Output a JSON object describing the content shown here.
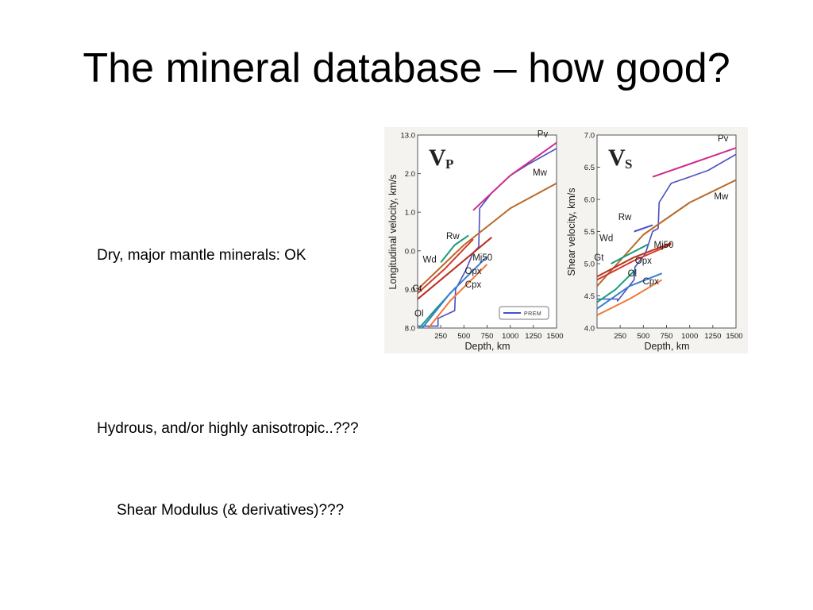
{
  "slide": {
    "title": "The mineral database – how good?",
    "bullets": [
      "Dry, major mantle minerals: OK",
      "Hydrous, and/or highly anisotropic..???",
      "Shear Modulus (& derivatives)???"
    ]
  },
  "colors": {
    "PREM": "#4a4fc4",
    "Pv": "#cc2e8c",
    "Mw": "#b86a28",
    "Gt": "#d33a2a",
    "Mj": "#b8301e",
    "Wd": "#1a9b7c",
    "Ol": "#16a07a",
    "Opx": "#3a7fd0",
    "Cpx": "#f07a3a"
  },
  "chart_data": [
    {
      "type": "line",
      "panel": "Vp",
      "panel_symbol": "V",
      "panel_subscript": "P",
      "xlabel": "Depth, km",
      "ylabel": "Longitudinal velocity, km/s",
      "xlim": [
        0,
        1500
      ],
      "x_ticks": [
        250,
        500,
        750,
        1000,
        1250,
        1500
      ],
      "y_ticks": [
        {
          "value": 0,
          "label": "8.0"
        },
        {
          "value": 1,
          "label": "9.0"
        },
        {
          "value": 2,
          "label": "0.0"
        },
        {
          "value": 3,
          "label": "1.0"
        },
        {
          "value": 4,
          "label": "2.0"
        },
        {
          "value": 5,
          "label": "13.0"
        }
      ],
      "ylim": [
        0,
        5
      ],
      "legend": {
        "label": "PREM",
        "placement": "bottom-right"
      },
      "series": [
        {
          "name": "PREM",
          "x": [
            0,
            220,
            220,
            400,
            410,
            520,
            600,
            660,
            670,
            800,
            1000,
            1200,
            1500
          ],
          "y": [
            0.05,
            0.05,
            0.25,
            0.45,
            1.0,
            1.5,
            1.95,
            2.1,
            3.1,
            3.5,
            3.95,
            4.25,
            4.65
          ]
        },
        {
          "name": "Pv",
          "x": [
            600,
            1000,
            1500
          ],
          "y": [
            3.05,
            3.95,
            4.8
          ]
        },
        {
          "name": "Mw",
          "x": [
            0,
            500,
            1000,
            1500
          ],
          "y": [
            1.0,
            2.15,
            3.1,
            3.75
          ]
        },
        {
          "name": "Gt",
          "x": [
            0,
            300,
            600
          ],
          "y": [
            0.9,
            1.55,
            2.3
          ]
        },
        {
          "name": "Mj",
          "x": [
            0,
            400,
            800
          ],
          "y": [
            0.75,
            1.55,
            2.35
          ]
        },
        {
          "name": "Wd",
          "x": [
            250,
            400,
            550
          ],
          "y": [
            1.7,
            2.15,
            2.4
          ]
        },
        {
          "name": "Ol",
          "x": [
            0,
            200,
            410
          ],
          "y": [
            -0.05,
            0.5,
            1.05
          ]
        },
        {
          "name": "Opx",
          "x": [
            0,
            350,
            750
          ],
          "y": [
            -0.15,
            0.9,
            1.85
          ]
        },
        {
          "name": "Cpx",
          "x": [
            0,
            350,
            750
          ],
          "y": [
            -0.35,
            0.7,
            1.65
          ]
        }
      ],
      "labels": [
        "Pv",
        "Mw",
        "Rw",
        "Wd",
        "Mj50",
        "Gt",
        "Opx",
        "Cpx",
        "Ol"
      ]
    },
    {
      "type": "line",
      "panel": "Vs",
      "panel_symbol": "V",
      "panel_subscript": "S",
      "xlabel": "Depth, km",
      "ylabel": "Shear velocity, km/s",
      "xlim": [
        0,
        1500
      ],
      "ylim": [
        4.0,
        7.0
      ],
      "x_ticks": [
        250,
        500,
        750,
        1000,
        1250,
        1500
      ],
      "y_ticks": [
        {
          "value": 4.0,
          "label": "4.0"
        },
        {
          "value": 4.5,
          "label": "4.5"
        },
        {
          "value": 5.0,
          "label": "5.0"
        },
        {
          "value": 5.5,
          "label": "5.5"
        },
        {
          "value": 6.0,
          "label": "6.0"
        },
        {
          "value": 6.5,
          "label": "6.5"
        },
        {
          "value": 7.0,
          "label": "7.0"
        }
      ],
      "series": [
        {
          "name": "PREM",
          "x": [
            0,
            220,
            220,
            400,
            410,
            520,
            600,
            660,
            670,
            800,
            1000,
            1200,
            1500
          ],
          "y": [
            4.45,
            4.45,
            4.42,
            4.75,
            4.95,
            5.15,
            5.5,
            5.55,
            5.95,
            6.25,
            6.35,
            6.45,
            6.7
          ]
        },
        {
          "name": "Pv",
          "x": [
            600,
            1000,
            1500
          ],
          "y": [
            6.35,
            6.55,
            6.8
          ]
        },
        {
          "name": "Mw",
          "x": [
            0,
            500,
            1000,
            1500
          ],
          "y": [
            4.65,
            5.45,
            5.95,
            6.3
          ]
        },
        {
          "name": "Gt",
          "x": [
            0,
            400,
            800
          ],
          "y": [
            4.75,
            5.05,
            5.3
          ]
        },
        {
          "name": "Mj",
          "x": [
            0,
            400,
            800
          ],
          "y": [
            4.8,
            5.1,
            5.32
          ]
        },
        {
          "name": "Wd",
          "x": [
            150,
            350,
            550
          ],
          "y": [
            5.0,
            5.15,
            5.3
          ]
        },
        {
          "name": "Rw",
          "x": [
            400,
            600
          ],
          "y": [
            5.5,
            5.6
          ]
        },
        {
          "name": "Ol",
          "x": [
            0,
            200,
            410
          ],
          "y": [
            4.4,
            4.6,
            4.9
          ]
        },
        {
          "name": "Opx",
          "x": [
            0,
            350,
            700
          ],
          "y": [
            4.3,
            4.65,
            4.85
          ]
        },
        {
          "name": "Cpx",
          "x": [
            0,
            350,
            700
          ],
          "y": [
            4.2,
            4.45,
            4.75
          ]
        }
      ],
      "labels": [
        "Pv",
        "Mw",
        "Rw",
        "Wd",
        "Mj50",
        "Gt",
        "Opx",
        "Ol",
        "Cpx"
      ]
    }
  ]
}
